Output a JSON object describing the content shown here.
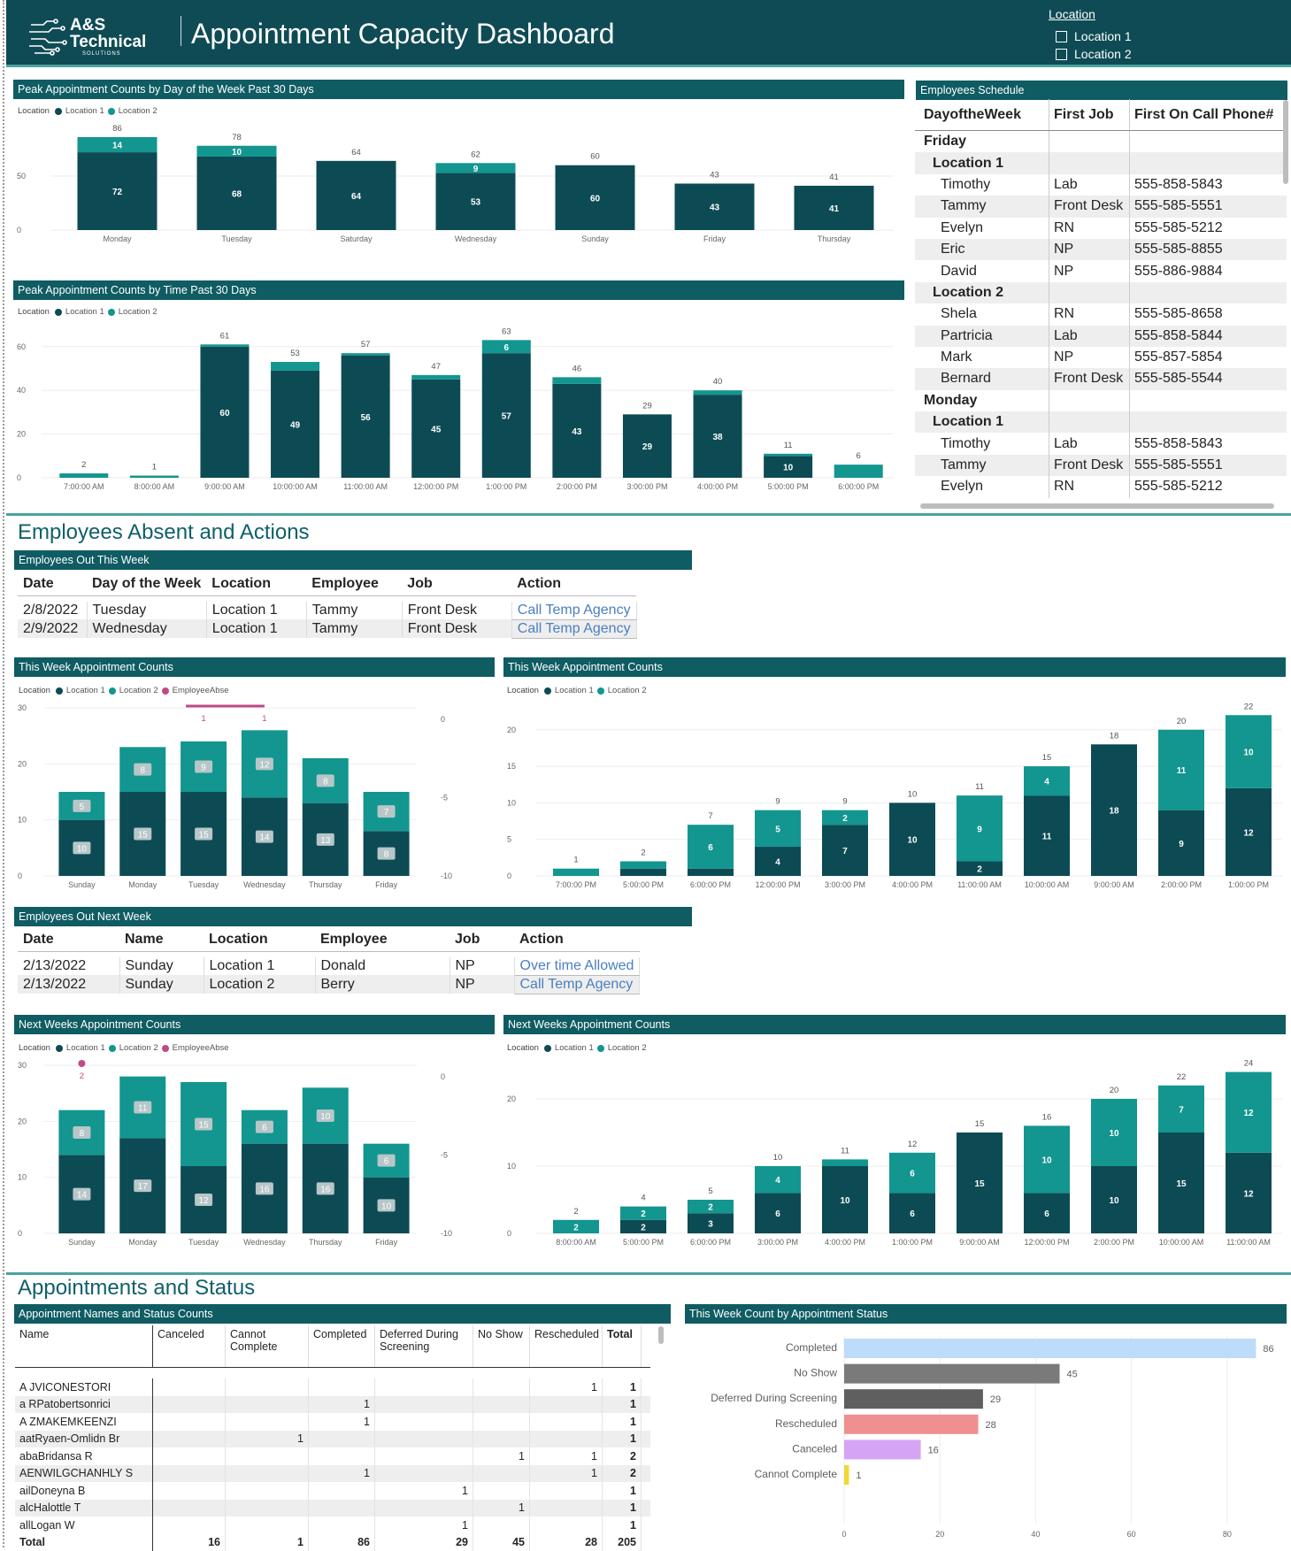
{
  "header": {
    "logo_text": "A&S Technical",
    "logo_sub": "SOLUTIONS",
    "title": "Appointment Capacity Dashboard",
    "location_slicer": {
      "title": "Location",
      "options": [
        "Location 1",
        "Location 2"
      ]
    }
  },
  "colors": {
    "loc1": "#0d4b54",
    "loc2": "#12968f",
    "absent": "#c04a84",
    "header": "#0f4b55",
    "accent": "#4aa39f"
  },
  "legend": {
    "location_label": "Location",
    "loc1": "Location 1",
    "loc2": "Location 2",
    "absent": "EmployeeAbse"
  },
  "sections": {
    "absent_actions": "Employees Absent and Actions",
    "appointments_status": "Appointments and Status"
  },
  "visual_titles": {
    "peak_day": "Peak Appointment Counts by Day of the Week Past 30 Days",
    "peak_time": "Peak Appointment Counts by Time Past 30 Days",
    "schedule": "Employees Schedule",
    "out_this_week": "Employees Out This Week",
    "this_week_day": "This Week Appointment Counts",
    "this_week_time": "This Week Appointment Counts",
    "out_next_week": "Employees Out Next Week",
    "next_week_day": "Next Weeks Appointment Counts",
    "next_week_time": "Next Weeks Appointment Counts",
    "status_names": "Appointment Names and Status Counts",
    "status_count": "This Week Count by Appointment Status"
  },
  "schedule": {
    "headers": [
      "DayoftheWeek",
      "First Job",
      "First On Call Phone#"
    ],
    "rows": [
      {
        "t": "grp",
        "a": "Friday",
        "b": "",
        "c": ""
      },
      {
        "t": "sub",
        "a": "Location 1",
        "b": "",
        "c": ""
      },
      {
        "t": "leaf",
        "a": "Timothy",
        "b": "Lab",
        "c": "555-858-5843"
      },
      {
        "t": "leaf",
        "a": "Tammy",
        "b": "Front Desk",
        "c": "555-585-5551"
      },
      {
        "t": "leaf",
        "a": "Evelyn",
        "b": "RN",
        "c": "555-585-5212"
      },
      {
        "t": "leaf",
        "a": "Eric",
        "b": "NP",
        "c": "555-585-8855"
      },
      {
        "t": "leaf",
        "a": "David",
        "b": "NP",
        "c": "555-886-9884"
      },
      {
        "t": "sub",
        "a": "Location 2",
        "b": "",
        "c": ""
      },
      {
        "t": "leaf",
        "a": "Shela",
        "b": "RN",
        "c": "555-585-8658"
      },
      {
        "t": "leaf",
        "a": "Partricia",
        "b": "Lab",
        "c": "555-858-5844"
      },
      {
        "t": "leaf",
        "a": "Mark",
        "b": "NP",
        "c": "555-857-5854"
      },
      {
        "t": "leaf",
        "a": "Bernard",
        "b": "Front Desk",
        "c": "555-585-5544"
      },
      {
        "t": "grp",
        "a": "Monday",
        "b": "",
        "c": ""
      },
      {
        "t": "sub",
        "a": "Location 1",
        "b": "",
        "c": ""
      },
      {
        "t": "leaf",
        "a": "Timothy",
        "b": "Lab",
        "c": "555-858-5843"
      },
      {
        "t": "leaf",
        "a": "Tammy",
        "b": "Front Desk",
        "c": "555-585-5551"
      },
      {
        "t": "leaf",
        "a": "Evelyn",
        "b": "RN",
        "c": "555-585-5212"
      }
    ]
  },
  "out_this_week": {
    "headers": [
      "Date",
      "Day of the Week",
      "Location",
      "Employee",
      "Job",
      "Action"
    ],
    "rows": [
      [
        "2/8/2022",
        "Tuesday",
        "Location 1",
        "Tammy",
        "Front Desk",
        "Call Temp Agency"
      ],
      [
        "2/9/2022",
        "Wednesday",
        "Location 1",
        "Tammy",
        "Front Desk",
        "Call Temp Agency"
      ]
    ]
  },
  "out_next_week": {
    "headers": [
      "Date",
      "Name",
      "Location",
      "Employee",
      "Job",
      "Action"
    ],
    "rows": [
      [
        "2/13/2022",
        "Sunday",
        "Location 1",
        "Donald",
        "NP",
        "Over time Allowed"
      ],
      [
        "2/13/2022",
        "Sunday",
        "Location 2",
        "Berry",
        "NP",
        "Call Temp Agency"
      ]
    ]
  },
  "status_table": {
    "headers": [
      "Name",
      "Canceled",
      "Cannot Complete",
      "Completed",
      "Deferred During Screening",
      "No Show",
      "Rescheduled",
      "Total"
    ],
    "rows": [
      [
        "A JVICONESTORI",
        "",
        "",
        "",
        "",
        "",
        "1",
        "1"
      ],
      [
        "a RPatobertsonrici",
        "",
        "",
        "1",
        "",
        "",
        "",
        "1"
      ],
      [
        "A ZMAKEMKEENZI",
        "",
        "",
        "1",
        "",
        "",
        "",
        "1"
      ],
      [
        "aatRyaen-Omlidn Br",
        "",
        "1",
        "",
        "",
        "",
        "",
        "1"
      ],
      [
        "abaBridansa R",
        "",
        "",
        "",
        "",
        "1",
        "1",
        "2"
      ],
      [
        "AENWILGCHANHLY S",
        "",
        "",
        "1",
        "",
        "",
        "1",
        "2"
      ],
      [
        "ailDoneyna B",
        "",
        "",
        "",
        "1",
        "",
        "",
        "1"
      ],
      [
        "alcHalottle T",
        "",
        "",
        "",
        "",
        "1",
        "",
        "1"
      ],
      [
        "allLogan W",
        "",
        "",
        "",
        "1",
        "",
        "",
        "1"
      ]
    ],
    "total": [
      "Total",
      "16",
      "1",
      "86",
      "29",
      "45",
      "28",
      "205"
    ]
  },
  "chart_data": [
    {
      "id": "peak_day",
      "type": "bar",
      "stacked": true,
      "categories": [
        "Monday",
        "Tuesday",
        "Saturday",
        "Wednesday",
        "Sunday",
        "Friday",
        "Thursday"
      ],
      "series": [
        {
          "name": "Location 1",
          "values": [
            72,
            68,
            64,
            53,
            60,
            43,
            41
          ]
        },
        {
          "name": "Location 2",
          "values": [
            14,
            10,
            0,
            9,
            0,
            0,
            0
          ]
        }
      ],
      "totals": [
        86,
        78,
        64,
        62,
        60,
        43,
        41
      ],
      "yticks": [
        0,
        50
      ],
      "ylim": [
        0,
        95
      ]
    },
    {
      "id": "peak_time",
      "type": "bar",
      "stacked": true,
      "categories": [
        "7:00:00 AM",
        "8:00:00 AM",
        "9:00:00 AM",
        "10:00:00 AM",
        "11:00:00 AM",
        "12:00:00 PM",
        "1:00:00 PM",
        "2:00:00 PM",
        "3:00:00 PM",
        "4:00:00 PM",
        "5:00:00 PM",
        "6:00:00 PM"
      ],
      "series": [
        {
          "name": "Location 1",
          "values": [
            0,
            0,
            60,
            49,
            56,
            45,
            57,
            43,
            29,
            38,
            10,
            0
          ]
        },
        {
          "name": "Location 2",
          "values": [
            2,
            1,
            1,
            4,
            1,
            2,
            6,
            3,
            0,
            2,
            1,
            6
          ]
        }
      ],
      "inner": [
        [
          null,
          null,
          "60",
          "49",
          "56",
          "45",
          "57",
          "43",
          "29",
          "38",
          "10",
          null
        ],
        [
          null,
          null,
          null,
          null,
          null,
          null,
          "6",
          null,
          null,
          null,
          null,
          null
        ]
      ],
      "totals": [
        2,
        1,
        61,
        53,
        57,
        47,
        63,
        46,
        29,
        40,
        11,
        6
      ],
      "yticks": [
        0,
        20,
        40,
        60
      ],
      "ylim": [
        0,
        68
      ]
    },
    {
      "id": "this_week_day",
      "type": "bar",
      "stacked": true,
      "categories": [
        "Sunday",
        "Monday",
        "Tuesday",
        "Wednesday",
        "Thursday",
        "Friday"
      ],
      "series": [
        {
          "name": "Location 1",
          "values": [
            10,
            15,
            15,
            14,
            13,
            8
          ]
        },
        {
          "name": "Location 2",
          "values": [
            5,
            8,
            9,
            12,
            8,
            7
          ]
        }
      ],
      "absent": {
        "name": "EmployeeAbse",
        "values": [
          null,
          null,
          1,
          1,
          null,
          null
        ]
      },
      "yticks": [
        0,
        10,
        20,
        30
      ],
      "ylim": [
        0,
        30
      ],
      "y2ticks": [
        0,
        -5,
        -10
      ]
    },
    {
      "id": "this_week_time",
      "type": "bar",
      "stacked": true,
      "categories": [
        "7:00:00 PM",
        "5:00:00 PM",
        "6:00:00 PM",
        "12:00:00 PM",
        "3:00:00 PM",
        "4:00:00 PM",
        "11:00:00 AM",
        "10:00:00 AM",
        "9:00:00 AM",
        "2:00:00 PM",
        "1:00:00 PM"
      ],
      "series": [
        {
          "name": "Location 1",
          "values": [
            0,
            1,
            1,
            4,
            7,
            10,
            2,
            11,
            18,
            9,
            12
          ]
        },
        {
          "name": "Location 2",
          "values": [
            1,
            1,
            6,
            5,
            2,
            0,
            9,
            4,
            0,
            11,
            10
          ]
        }
      ],
      "inner": [
        [
          null,
          null,
          null,
          "4",
          "7",
          "10",
          "2",
          "11",
          "18",
          "9",
          "12"
        ],
        [
          null,
          null,
          "6",
          "5",
          "2",
          null,
          "9",
          "4",
          null,
          "11",
          "10"
        ]
      ],
      "totals": [
        1,
        2,
        7,
        9,
        9,
        10,
        11,
        15,
        18,
        20,
        22
      ],
      "yticks": [
        0,
        5,
        10,
        15,
        20
      ],
      "ylim": [
        0,
        23
      ]
    },
    {
      "id": "next_week_day",
      "type": "bar",
      "stacked": true,
      "categories": [
        "Sunday",
        "Monday",
        "Tuesday",
        "Wednesday",
        "Thursday",
        "Friday"
      ],
      "series": [
        {
          "name": "Location 1",
          "values": [
            14,
            17,
            12,
            16,
            16,
            10
          ]
        },
        {
          "name": "Location 2",
          "values": [
            8,
            11,
            15,
            6,
            10,
            6
          ]
        }
      ],
      "absent": {
        "name": "EmployeeAbse",
        "values": [
          2,
          null,
          null,
          null,
          null,
          null
        ]
      },
      "yticks": [
        0,
        10,
        20,
        30
      ],
      "ylim": [
        0,
        30
      ],
      "y2ticks": [
        0,
        -5,
        -10
      ]
    },
    {
      "id": "next_week_time",
      "type": "bar",
      "stacked": true,
      "categories": [
        "8:00:00 AM",
        "5:00:00 PM",
        "6:00:00 PM",
        "3:00:00 PM",
        "4:00:00 PM",
        "1:00:00 PM",
        "9:00:00 AM",
        "12:00:00 PM",
        "2:00:00 PM",
        "10:00:00 AM",
        "11:00:00 AM"
      ],
      "series": [
        {
          "name": "Location 1",
          "values": [
            0,
            2,
            3,
            6,
            10,
            6,
            15,
            6,
            10,
            15,
            12
          ]
        },
        {
          "name": "Location 2",
          "values": [
            2,
            2,
            2,
            4,
            1,
            6,
            0,
            10,
            10,
            7,
            12
          ]
        }
      ],
      "inner": [
        [
          null,
          "2",
          "3",
          "6",
          "10",
          "6",
          "15",
          "6",
          "10",
          "15",
          "12"
        ],
        [
          "2",
          "2",
          "2",
          "4",
          null,
          "6",
          null,
          "10",
          "10",
          "7",
          "12"
        ]
      ],
      "totals": [
        2,
        4,
        5,
        10,
        11,
        12,
        15,
        16,
        20,
        22,
        24
      ],
      "yticks": [
        0,
        10,
        20
      ],
      "ylim": [
        0,
        25
      ]
    },
    {
      "id": "status_count",
      "type": "bar",
      "orientation": "horizontal",
      "categories": [
        "Completed",
        "No Show",
        "Deferred During Screening",
        "Rescheduled",
        "Canceled",
        "Cannot Complete"
      ],
      "values": [
        86,
        45,
        29,
        28,
        16,
        1
      ],
      "colors": [
        "#bcdcf9",
        "#7a7a7a",
        "#5f5f5f",
        "#f08f8f",
        "#d6a4f4",
        "#f1d734"
      ],
      "xticks": [
        0,
        20,
        40,
        60,
        80
      ],
      "xlim": [
        0,
        90
      ]
    }
  ]
}
